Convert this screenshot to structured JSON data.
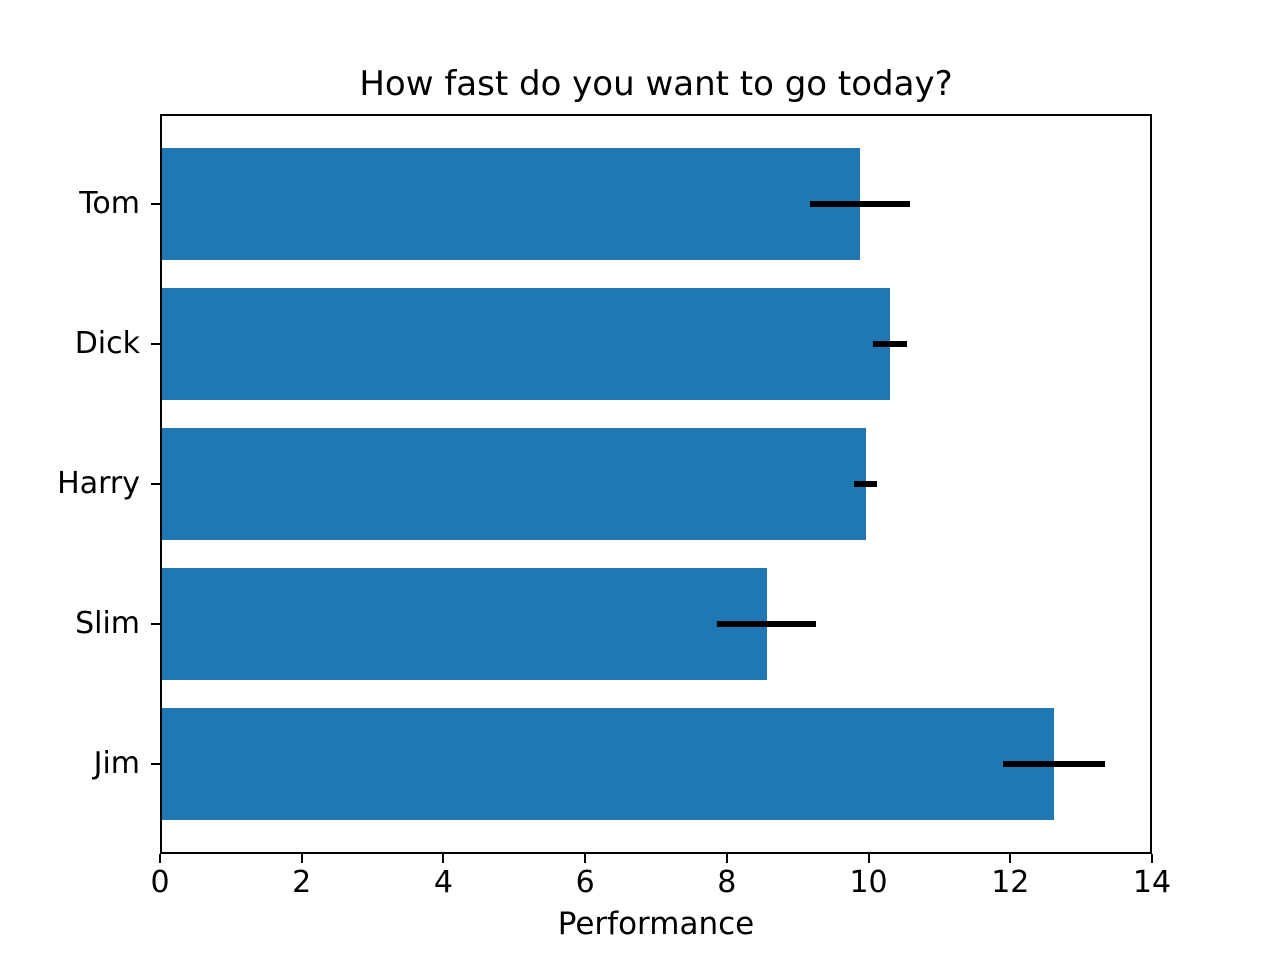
{
  "chart_data": {
    "type": "bar",
    "orientation": "horizontal",
    "title": "How fast do you want to go today?",
    "xlabel": "Performance",
    "ylabel": "",
    "categories": [
      "Tom",
      "Dick",
      "Harry",
      "Slim",
      "Jim"
    ],
    "values": [
      9.88,
      10.3,
      9.96,
      8.56,
      12.62
    ],
    "xerr": [
      0.7,
      0.24,
      0.16,
      0.7,
      0.72
    ],
    "xlim": [
      0,
      14
    ],
    "xticks": [
      0,
      2,
      4,
      6,
      8,
      10,
      12,
      14
    ],
    "bar_height_fraction": 0.8,
    "y_axis_inverted": true,
    "grid": false,
    "legend": false,
    "colors": {
      "bar": "#1f77b4",
      "error_bar": "#000000",
      "text": "#000000",
      "spine": "#000000",
      "background": "#ffffff"
    }
  }
}
